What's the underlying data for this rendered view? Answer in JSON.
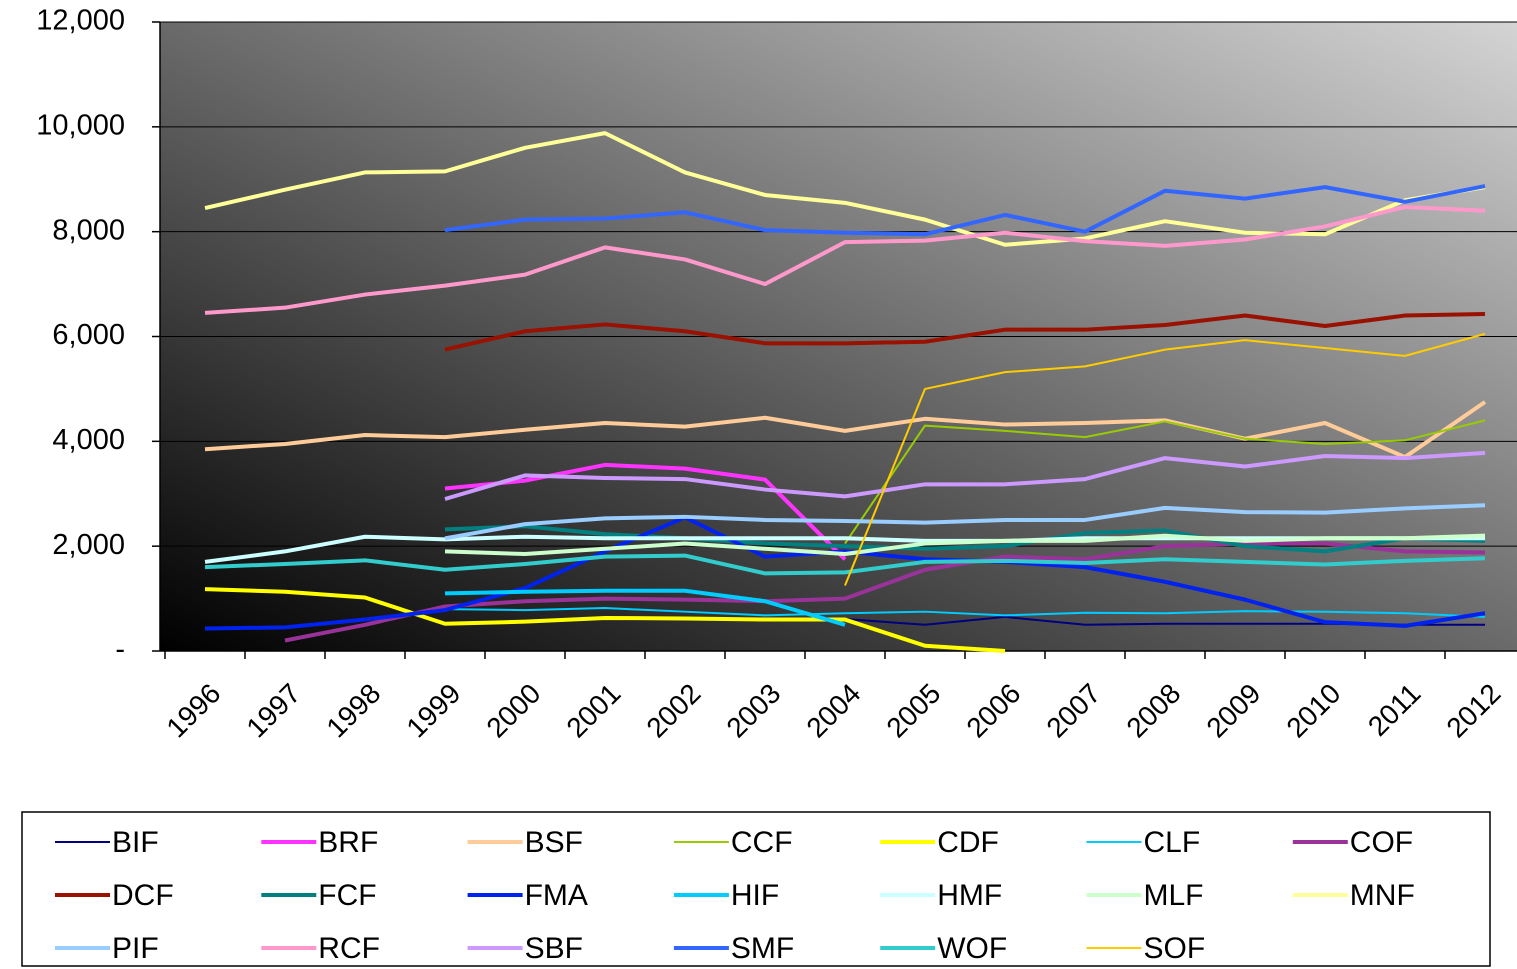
{
  "chart_data": {
    "type": "line",
    "categories": [
      "1996",
      "1997",
      "1998",
      "1999",
      "2000",
      "2001",
      "2002",
      "2003",
      "2004",
      "2005",
      "2006",
      "2007",
      "2008",
      "2009",
      "2010",
      "2011",
      "2012"
    ],
    "ylim": [
      0,
      12000
    ],
    "yticks": [
      {
        "value": 0,
        "label": "-"
      },
      {
        "value": 2000,
        "label": "2,000"
      },
      {
        "value": 4000,
        "label": "4,000"
      },
      {
        "value": 6000,
        "label": "6,000"
      },
      {
        "value": 8000,
        "label": "8,000"
      },
      {
        "value": 10000,
        "label": "10,000"
      },
      {
        "value": 12000,
        "label": "12,000"
      }
    ],
    "grid": true,
    "legend": "bottom",
    "series": [
      {
        "name": "BIF",
        "color": "#000080",
        "linewidth": 2,
        "values": [
          null,
          null,
          null,
          null,
          null,
          null,
          null,
          590,
          610,
          500,
          650,
          500,
          520,
          520,
          520,
          500,
          500
        ]
      },
      {
        "name": "BRF",
        "color": "#ff33ff",
        "linewidth": 4,
        "values": [
          null,
          null,
          null,
          3100,
          3250,
          3550,
          3480,
          3270,
          1750,
          null,
          null,
          null,
          null,
          null,
          null,
          null,
          null
        ]
      },
      {
        "name": "BSF",
        "color": "#ffcc99",
        "linewidth": 4,
        "values": [
          3850,
          3950,
          4120,
          4080,
          4220,
          4350,
          4280,
          4450,
          4200,
          4430,
          4320,
          4350,
          4400,
          4050,
          4350,
          3700,
          4750
        ]
      },
      {
        "name": "CCF",
        "color": "#99cc00",
        "linewidth": 2,
        "values": [
          null,
          null,
          null,
          null,
          null,
          null,
          null,
          null,
          2050,
          4300,
          4200,
          4080,
          4380,
          4050,
          3950,
          4020,
          4400
        ]
      },
      {
        "name": "CDF",
        "color": "#ffff00",
        "linewidth": 4,
        "values": [
          1180,
          1130,
          1020,
          520,
          560,
          630,
          620,
          600,
          600,
          100,
          0,
          null,
          null,
          null,
          null,
          null,
          null
        ]
      },
      {
        "name": "CLF",
        "color": "#00ccff",
        "linewidth": 2,
        "values": [
          null,
          null,
          null,
          800,
          780,
          820,
          750,
          680,
          720,
          750,
          680,
          730,
          720,
          760,
          750,
          720,
          650
        ]
      },
      {
        "name": "COF",
        "color": "#993399",
        "linewidth": 4,
        "values": [
          null,
          200,
          500,
          850,
          950,
          1000,
          980,
          950,
          1000,
          1550,
          1800,
          1750,
          2000,
          2050,
          2050,
          1900,
          1880
        ]
      },
      {
        "name": "DCF",
        "color": "#991100",
        "linewidth": 4,
        "values": [
          null,
          null,
          null,
          5750,
          6100,
          6230,
          6100,
          5870,
          5870,
          5900,
          6130,
          6130,
          6220,
          6400,
          6200,
          6400,
          6430
        ]
      },
      {
        "name": "FCF",
        "color": "#008080",
        "linewidth": 4,
        "values": [
          null,
          null,
          null,
          2320,
          2380,
          2230,
          2150,
          2050,
          2000,
          1950,
          2000,
          2250,
          2300,
          2000,
          1900,
          2150,
          2100
        ]
      },
      {
        "name": "FMA",
        "color": "#0022ee",
        "linewidth": 4,
        "values": [
          430,
          450,
          600,
          780,
          1200,
          1900,
          2550,
          1800,
          1900,
          1750,
          1700,
          1600,
          1320,
          980,
          550,
          480,
          720
        ]
      },
      {
        "name": "HIF",
        "color": "#00ccff",
        "linewidth": 4,
        "values": [
          null,
          null,
          null,
          1100,
          1130,
          1150,
          1150,
          950,
          500,
          null,
          null,
          null,
          null,
          null,
          null,
          null,
          null
        ]
      },
      {
        "name": "HMF",
        "color": "#ccffff",
        "linewidth": 4,
        "values": [
          1700,
          1900,
          2180,
          2130,
          2180,
          2150,
          2150,
          2150,
          2150,
          2100,
          2100,
          2150,
          2150,
          2150,
          2150,
          2150,
          2150
        ]
      },
      {
        "name": "MLF",
        "color": "#ccffcc",
        "linewidth": 4,
        "values": [
          null,
          null,
          null,
          1900,
          1850,
          1950,
          2050,
          1950,
          1850,
          2050,
          2100,
          2100,
          2200,
          2100,
          2150,
          2150,
          2200
        ]
      },
      {
        "name": "MNF",
        "color": "#ffff99",
        "linewidth": 4,
        "values": [
          8450,
          8800,
          9130,
          9150,
          9600,
          9880,
          9130,
          8700,
          8550,
          8230,
          7750,
          7870,
          8200,
          7980,
          7950,
          8600,
          8850
        ]
      },
      {
        "name": "PIF",
        "color": "#99ccff",
        "linewidth": 4,
        "values": [
          null,
          null,
          null,
          2150,
          2420,
          2530,
          2560,
          2500,
          2480,
          2450,
          2500,
          2500,
          2730,
          2650,
          2640,
          2720,
          2780
        ]
      },
      {
        "name": "RCF",
        "color": "#ff99cc",
        "linewidth": 4,
        "values": [
          6450,
          6550,
          6800,
          6970,
          7180,
          7700,
          7470,
          7000,
          7800,
          7830,
          7980,
          7820,
          7730,
          7850,
          8100,
          8470,
          8400
        ]
      },
      {
        "name": "SBF",
        "color": "#cc99ff",
        "linewidth": 4,
        "values": [
          null,
          null,
          null,
          2900,
          3350,
          3300,
          3280,
          3080,
          2950,
          3180,
          3180,
          3280,
          3680,
          3520,
          3720,
          3680,
          3780
        ]
      },
      {
        "name": "SMF",
        "color": "#3366ff",
        "linewidth": 4,
        "values": [
          null,
          null,
          null,
          8030,
          8230,
          8250,
          8370,
          8030,
          7980,
          7950,
          8320,
          8000,
          8780,
          8630,
          8850,
          8570,
          8870
        ]
      },
      {
        "name": "WOF",
        "color": "#33cccc",
        "linewidth": 4,
        "values": [
          1600,
          1660,
          1730,
          1550,
          1660,
          1800,
          1820,
          1480,
          1500,
          1700,
          1720,
          1680,
          1750,
          1700,
          1650,
          1720,
          1770
        ]
      },
      {
        "name": "SOF",
        "color": "#ffcc00",
        "linewidth": 2,
        "values": [
          null,
          null,
          null,
          null,
          null,
          null,
          null,
          null,
          1250,
          5000,
          5320,
          5430,
          5750,
          5930,
          5780,
          5630,
          6050
        ]
      }
    ]
  }
}
